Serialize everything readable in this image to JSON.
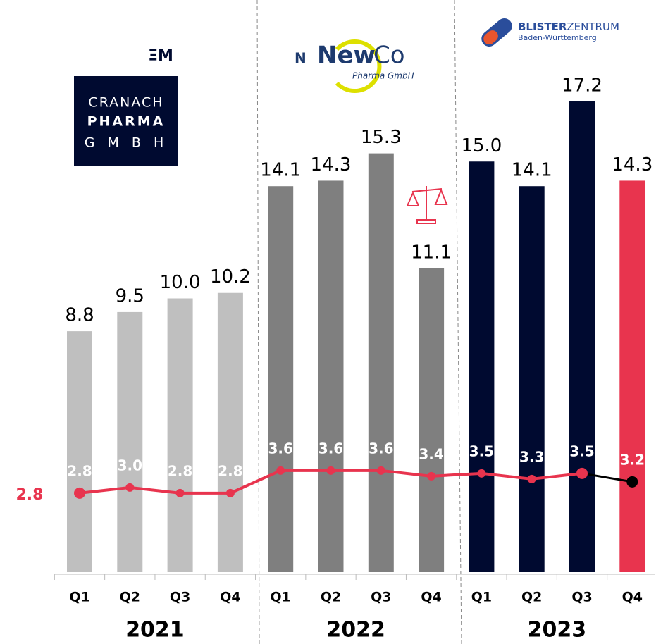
{
  "chart_data": {
    "type": "bar_line",
    "categories": [
      "Q1",
      "Q2",
      "Q3",
      "Q4",
      "Q1",
      "Q2",
      "Q3",
      "Q4",
      "Q1",
      "Q2",
      "Q3",
      "Q4"
    ],
    "groups": [
      {
        "label": "2021",
        "size": 4
      },
      {
        "label": "2022",
        "size": 4
      },
      {
        "label": "2023",
        "size": 4
      }
    ],
    "series": [
      {
        "type": "bar",
        "values": [
          8.8,
          9.5,
          10.0,
          10.2,
          14.1,
          14.3,
          15.3,
          11.1,
          15.0,
          14.1,
          17.2,
          14.3
        ],
        "value_labels": [
          "8.8",
          "9.5",
          "10.0",
          "10.2",
          "14.1",
          "14.3",
          "15.3",
          "11.1",
          "15.0",
          "14.1",
          "17.2",
          "14.3"
        ],
        "colors": [
          "#bfbfbf",
          "#bfbfbf",
          "#bfbfbf",
          "#bfbfbf",
          "#7f7f7f",
          "#7f7f7f",
          "#7f7f7f",
          "#7f7f7f",
          "#000a30",
          "#000a30",
          "#000a30",
          "#e8344e"
        ]
      },
      {
        "type": "line",
        "axis": "y2",
        "color": "#e8344e",
        "last_segment_color": "#000000",
        "values": [
          2.8,
          3.0,
          2.8,
          2.8,
          3.6,
          3.6,
          3.6,
          3.4,
          3.5,
          3.3,
          3.5,
          3.2
        ],
        "value_labels": [
          "2.8",
          "3.0",
          "2.8",
          "2.8",
          "3.6",
          "3.6",
          "3.6",
          "3.4",
          "3.5",
          "3.3",
          "3.5",
          "3.2"
        ]
      }
    ],
    "ylim": [
      0,
      20
    ],
    "y2lim": [
      0,
      19.4
    ],
    "annotations": [
      "2.8"
    ],
    "logos": {
      "em": "ΞM",
      "cranach": [
        "CRANACH",
        "PHARMA",
        "G M B H"
      ],
      "newco": [
        "N",
        "New",
        "Co",
        "Pharma GmbH"
      ],
      "blister": [
        "BLISTER",
        "ZENTRUM",
        "Baden-Württemberg"
      ]
    }
  }
}
